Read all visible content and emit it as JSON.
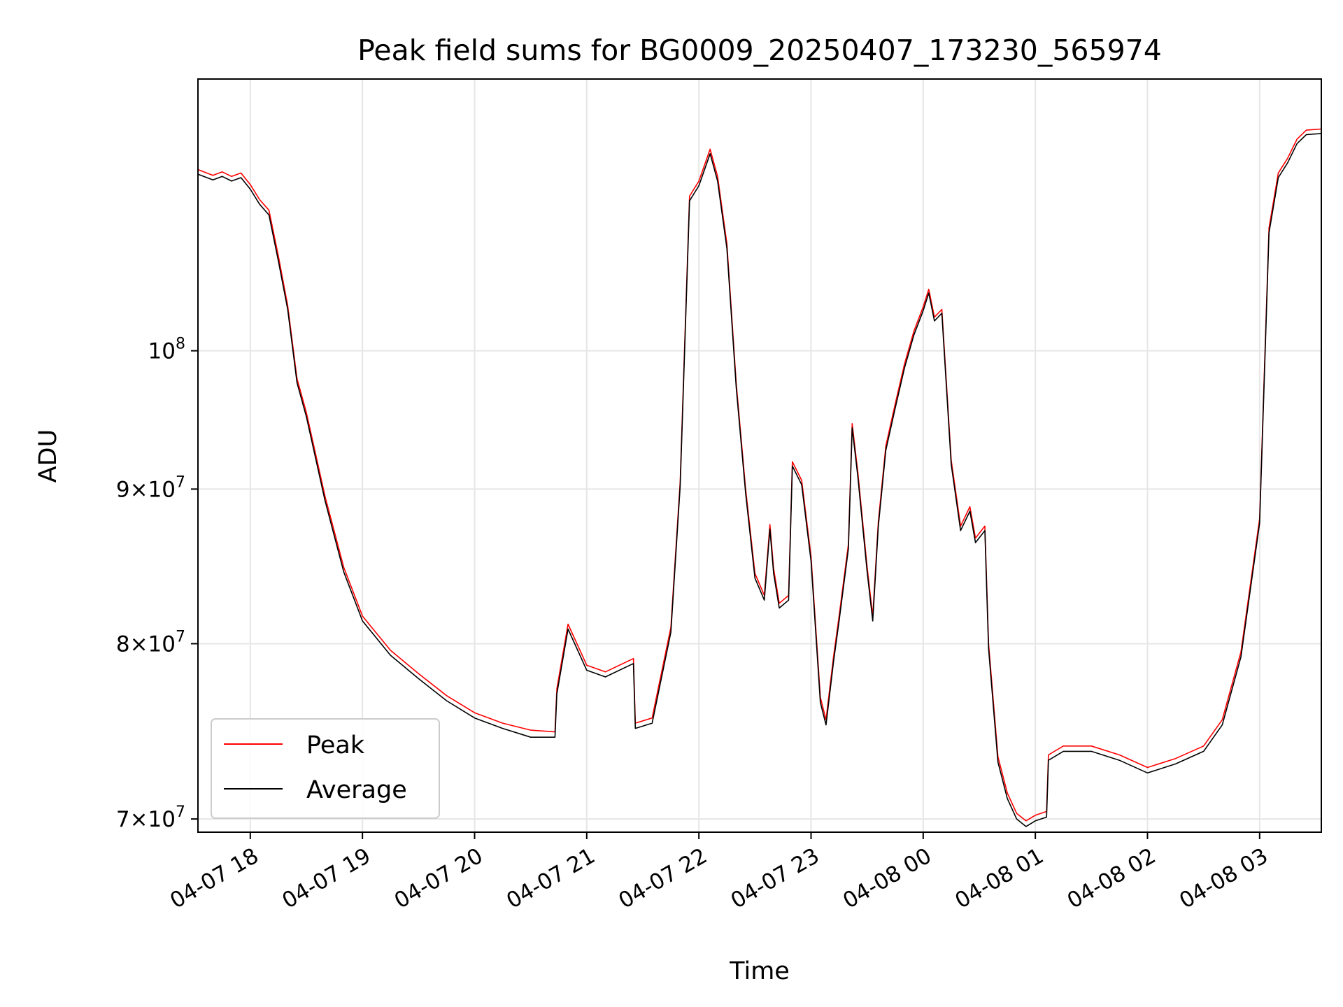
{
  "chart_data": {
    "type": "line",
    "title": "Peak field sums for BG0009_20250407_173230_565974",
    "xlabel": "Time",
    "ylabel": "ADU",
    "y_scale": "log",
    "ylim": [
      69300000,
      123000000
    ],
    "xlim": [
      "2025-04-07 17:32",
      "2025-04-08 03:33"
    ],
    "grid": true,
    "legend_position": "lower-left",
    "x_ticks": [
      {
        "value": "2025-04-07 18:00",
        "label": "04-07 18"
      },
      {
        "value": "2025-04-07 19:00",
        "label": "04-07 19"
      },
      {
        "value": "2025-04-07 20:00",
        "label": "04-07 20"
      },
      {
        "value": "2025-04-07 21:00",
        "label": "04-07 21"
      },
      {
        "value": "2025-04-07 22:00",
        "label": "04-07 22"
      },
      {
        "value": "2025-04-07 23:00",
        "label": "04-07 23"
      },
      {
        "value": "2025-04-08 00:00",
        "label": "04-08 00"
      },
      {
        "value": "2025-04-08 01:00",
        "label": "04-08 01"
      },
      {
        "value": "2025-04-08 02:00",
        "label": "04-08 02"
      },
      {
        "value": "2025-04-08 03:00",
        "label": "04-08 03"
      }
    ],
    "y_ticks": [
      {
        "value": 70000000,
        "mant": "7",
        "exp": "7"
      },
      {
        "value": 80000000,
        "mant": "8",
        "exp": "7"
      },
      {
        "value": 90000000,
        "mant": "9",
        "exp": "7"
      },
      {
        "value": 100000000,
        "mant": "",
        "exp": "8"
      }
    ],
    "series": [
      {
        "name": "Peak",
        "color": "#ff0000",
        "x": [
          "2025-04-07 17:32",
          "2025-04-07 17:40",
          "2025-04-07 17:45",
          "2025-04-07 17:50",
          "2025-04-07 17:55",
          "2025-04-07 18:00",
          "2025-04-07 18:05",
          "2025-04-07 18:10",
          "2025-04-07 18:15",
          "2025-04-07 18:20",
          "2025-04-07 18:25",
          "2025-04-07 18:30",
          "2025-04-07 18:40",
          "2025-04-07 18:50",
          "2025-04-07 19:00",
          "2025-04-07 19:15",
          "2025-04-07 19:30",
          "2025-04-07 19:45",
          "2025-04-07 20:00",
          "2025-04-07 20:15",
          "2025-04-07 20:30",
          "2025-04-07 20:43",
          "2025-04-07 20:44",
          "2025-04-07 20:50",
          "2025-04-07 21:00",
          "2025-04-07 21:10",
          "2025-04-07 21:25",
          "2025-04-07 21:26",
          "2025-04-07 21:35",
          "2025-04-07 21:45",
          "2025-04-07 21:50",
          "2025-04-07 21:55",
          "2025-04-07 22:00",
          "2025-04-07 22:06",
          "2025-04-07 22:10",
          "2025-04-07 22:15",
          "2025-04-07 22:20",
          "2025-04-07 22:25",
          "2025-04-07 22:30",
          "2025-04-07 22:35",
          "2025-04-07 22:38",
          "2025-04-07 22:40",
          "2025-04-07 22:43",
          "2025-04-07 22:48",
          "2025-04-07 22:50",
          "2025-04-07 22:55",
          "2025-04-07 23:00",
          "2025-04-07 23:05",
          "2025-04-07 23:08",
          "2025-04-07 23:12",
          "2025-04-07 23:15",
          "2025-04-07 23:20",
          "2025-04-07 23:22",
          "2025-04-07 23:25",
          "2025-04-07 23:30",
          "2025-04-07 23:33",
          "2025-04-07 23:36",
          "2025-04-07 23:40",
          "2025-04-07 23:45",
          "2025-04-07 23:50",
          "2025-04-07 23:55",
          "2025-04-08 00:00",
          "2025-04-08 00:03",
          "2025-04-08 00:06",
          "2025-04-08 00:10",
          "2025-04-08 00:15",
          "2025-04-08 00:20",
          "2025-04-08 00:25",
          "2025-04-08 00:28",
          "2025-04-08 00:33",
          "2025-04-08 00:35",
          "2025-04-08 00:40",
          "2025-04-08 00:45",
          "2025-04-08 00:50",
          "2025-04-08 00:55",
          "2025-04-08 01:00",
          "2025-04-08 01:06",
          "2025-04-08 01:07",
          "2025-04-08 01:15",
          "2025-04-08 01:30",
          "2025-04-08 01:45",
          "2025-04-08 02:00",
          "2025-04-08 02:15",
          "2025-04-08 02:30",
          "2025-04-08 02:40",
          "2025-04-08 02:50",
          "2025-04-08 03:00",
          "2025-04-08 03:05",
          "2025-04-08 03:10",
          "2025-04-08 03:15",
          "2025-04-08 03:20",
          "2025-04-08 03:25",
          "2025-04-08 03:33"
        ],
        "y": [
          114800000,
          114300000,
          114600000,
          114200000,
          114500000,
          113500000,
          112200000,
          111300000,
          107500000,
          103500000,
          97900000,
          95400000,
          89500000,
          84800000,
          81700000,
          79600000,
          78200000,
          76900000,
          75900000,
          75300000,
          74900000,
          74800000,
          77300000,
          81200000,
          78700000,
          78300000,
          79100000,
          75300000,
          75600000,
          81000000,
          90500000,
          112500000,
          113800000,
          116600000,
          114200000,
          108500000,
          97500000,
          90000000,
          84400000,
          83000000,
          87600000,
          84700000,
          82500000,
          83000000,
          91900000,
          90600000,
          85500000,
          76800000,
          75500000,
          79200000,
          81700000,
          86300000,
          94600000,
          91200000,
          84800000,
          81700000,
          87800000,
          93000000,
          96000000,
          99000000,
          101500000,
          103400000,
          104800000,
          102600000,
          103200000,
          92000000,
          87500000,
          88800000,
          86700000,
          87500000,
          80000000,
          73400000,
          71400000,
          70300000,
          69900000,
          70200000,
          70400000,
          73500000,
          74000000,
          74000000,
          73500000,
          72800000,
          73300000,
          74000000,
          75500000,
          79500000,
          88000000,
          109800000,
          114500000,
          115800000,
          117500000,
          118300000,
          118400000
        ]
      },
      {
        "name": "Average",
        "color": "#000000",
        "x": [
          "2025-04-07 17:32",
          "2025-04-07 17:40",
          "2025-04-07 17:45",
          "2025-04-07 17:50",
          "2025-04-07 17:55",
          "2025-04-07 18:00",
          "2025-04-07 18:05",
          "2025-04-07 18:10",
          "2025-04-07 18:15",
          "2025-04-07 18:20",
          "2025-04-07 18:25",
          "2025-04-07 18:30",
          "2025-04-07 18:40",
          "2025-04-07 18:50",
          "2025-04-07 19:00",
          "2025-04-07 19:15",
          "2025-04-07 19:30",
          "2025-04-07 19:45",
          "2025-04-07 20:00",
          "2025-04-07 20:15",
          "2025-04-07 20:30",
          "2025-04-07 20:43",
          "2025-04-07 20:44",
          "2025-04-07 20:50",
          "2025-04-07 21:00",
          "2025-04-07 21:10",
          "2025-04-07 21:25",
          "2025-04-07 21:26",
          "2025-04-07 21:35",
          "2025-04-07 21:45",
          "2025-04-07 21:50",
          "2025-04-07 21:55",
          "2025-04-07 22:00",
          "2025-04-07 22:06",
          "2025-04-07 22:10",
          "2025-04-07 22:15",
          "2025-04-07 22:20",
          "2025-04-07 22:25",
          "2025-04-07 22:30",
          "2025-04-07 22:35",
          "2025-04-07 22:38",
          "2025-04-07 22:40",
          "2025-04-07 22:43",
          "2025-04-07 22:48",
          "2025-04-07 22:50",
          "2025-04-07 22:55",
          "2025-04-07 23:00",
          "2025-04-07 23:05",
          "2025-04-07 23:08",
          "2025-04-07 23:12",
          "2025-04-07 23:15",
          "2025-04-07 23:20",
          "2025-04-07 23:22",
          "2025-04-07 23:25",
          "2025-04-07 23:30",
          "2025-04-07 23:33",
          "2025-04-07 23:36",
          "2025-04-07 23:40",
          "2025-04-07 23:45",
          "2025-04-07 23:50",
          "2025-04-07 23:55",
          "2025-04-08 00:00",
          "2025-04-08 00:03",
          "2025-04-08 00:06",
          "2025-04-08 00:10",
          "2025-04-08 00:15",
          "2025-04-08 00:20",
          "2025-04-08 00:25",
          "2025-04-08 00:28",
          "2025-04-08 00:33",
          "2025-04-08 00:35",
          "2025-04-08 00:40",
          "2025-04-08 00:45",
          "2025-04-08 00:50",
          "2025-04-08 00:55",
          "2025-04-08 01:00",
          "2025-04-08 01:06",
          "2025-04-08 01:07",
          "2025-04-08 01:15",
          "2025-04-08 01:30",
          "2025-04-08 01:45",
          "2025-04-08 02:00",
          "2025-04-08 02:15",
          "2025-04-08 02:30",
          "2025-04-08 02:40",
          "2025-04-08 02:50",
          "2025-04-08 03:00",
          "2025-04-08 03:05",
          "2025-04-08 03:10",
          "2025-04-08 03:15",
          "2025-04-08 03:20",
          "2025-04-08 03:25",
          "2025-04-08 03:33"
        ],
        "y": [
          114400000,
          113900000,
          114200000,
          113800000,
          114100000,
          113100000,
          111800000,
          110900000,
          107100000,
          103200000,
          97600000,
          95100000,
          89200000,
          84500000,
          81400000,
          79300000,
          77900000,
          76600000,
          75600000,
          75000000,
          74500000,
          74500000,
          77000000,
          80900000,
          78400000,
          78000000,
          78800000,
          75000000,
          75300000,
          80700000,
          90200000,
          112100000,
          113400000,
          116200000,
          113800000,
          108100000,
          97200000,
          89700000,
          84100000,
          82700000,
          87300000,
          84400000,
          82200000,
          82700000,
          91600000,
          90300000,
          85200000,
          76500000,
          75200000,
          78900000,
          81400000,
          86000000,
          94300000,
          90900000,
          84500000,
          81400000,
          87500000,
          92700000,
          95700000,
          98700000,
          101200000,
          103100000,
          104500000,
          102300000,
          102900000,
          91700000,
          87200000,
          88500000,
          86400000,
          87200000,
          79700000,
          73100000,
          71100000,
          70000000,
          69600000,
          69900000,
          70100000,
          73200000,
          73700000,
          73700000,
          73200000,
          72500000,
          73000000,
          73700000,
          75200000,
          79200000,
          87700000,
          109400000,
          114100000,
          115400000,
          117100000,
          117900000,
          118000000
        ]
      }
    ]
  }
}
